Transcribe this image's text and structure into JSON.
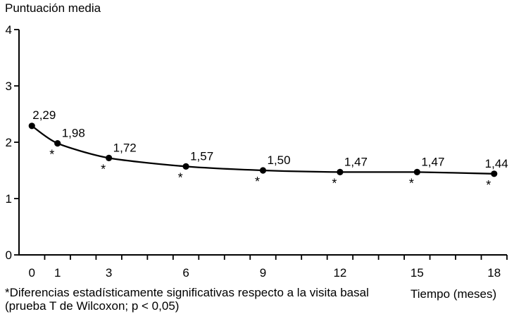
{
  "figure": {
    "y_axis_title": "Puntuación media",
    "x_axis_title": "Tiempo (meses)",
    "footnote_line1": "*Diferencias estadísticamente significativas respecto a la visita basal",
    "footnote_line2": "(prueba T de Wilcoxon; p < 0,05)"
  },
  "chart_data": {
    "type": "line",
    "title": "",
    "xlabel": "Tiempo (meses)",
    "ylabel": "Puntuación media",
    "x_months": [
      0,
      1,
      3,
      6,
      9,
      12,
      15,
      18
    ],
    "values": [
      2.29,
      1.98,
      1.72,
      1.57,
      1.5,
      1.47,
      1.47,
      1.44
    ],
    "point_labels": [
      "2,29",
      "1,98",
      "1,72",
      "1,57",
      "1,50",
      "1,47",
      "1,47",
      "1,44"
    ],
    "significant": [
      false,
      true,
      true,
      true,
      true,
      true,
      true,
      true
    ],
    "significance_marker": "*",
    "x_tick_labels": [
      "0",
      "1",
      "3",
      "6",
      "9",
      "12",
      "15",
      "18"
    ],
    "y_ticks": [
      0,
      1,
      2,
      3,
      4
    ],
    "xlim": [
      0,
      18
    ],
    "ylim": [
      0,
      4
    ],
    "x_categories_count": 19,
    "grid": false,
    "legend": "none",
    "smooth": true,
    "marker": "filled-circle",
    "line_color": "#000000",
    "background_color": "#ffffff"
  }
}
